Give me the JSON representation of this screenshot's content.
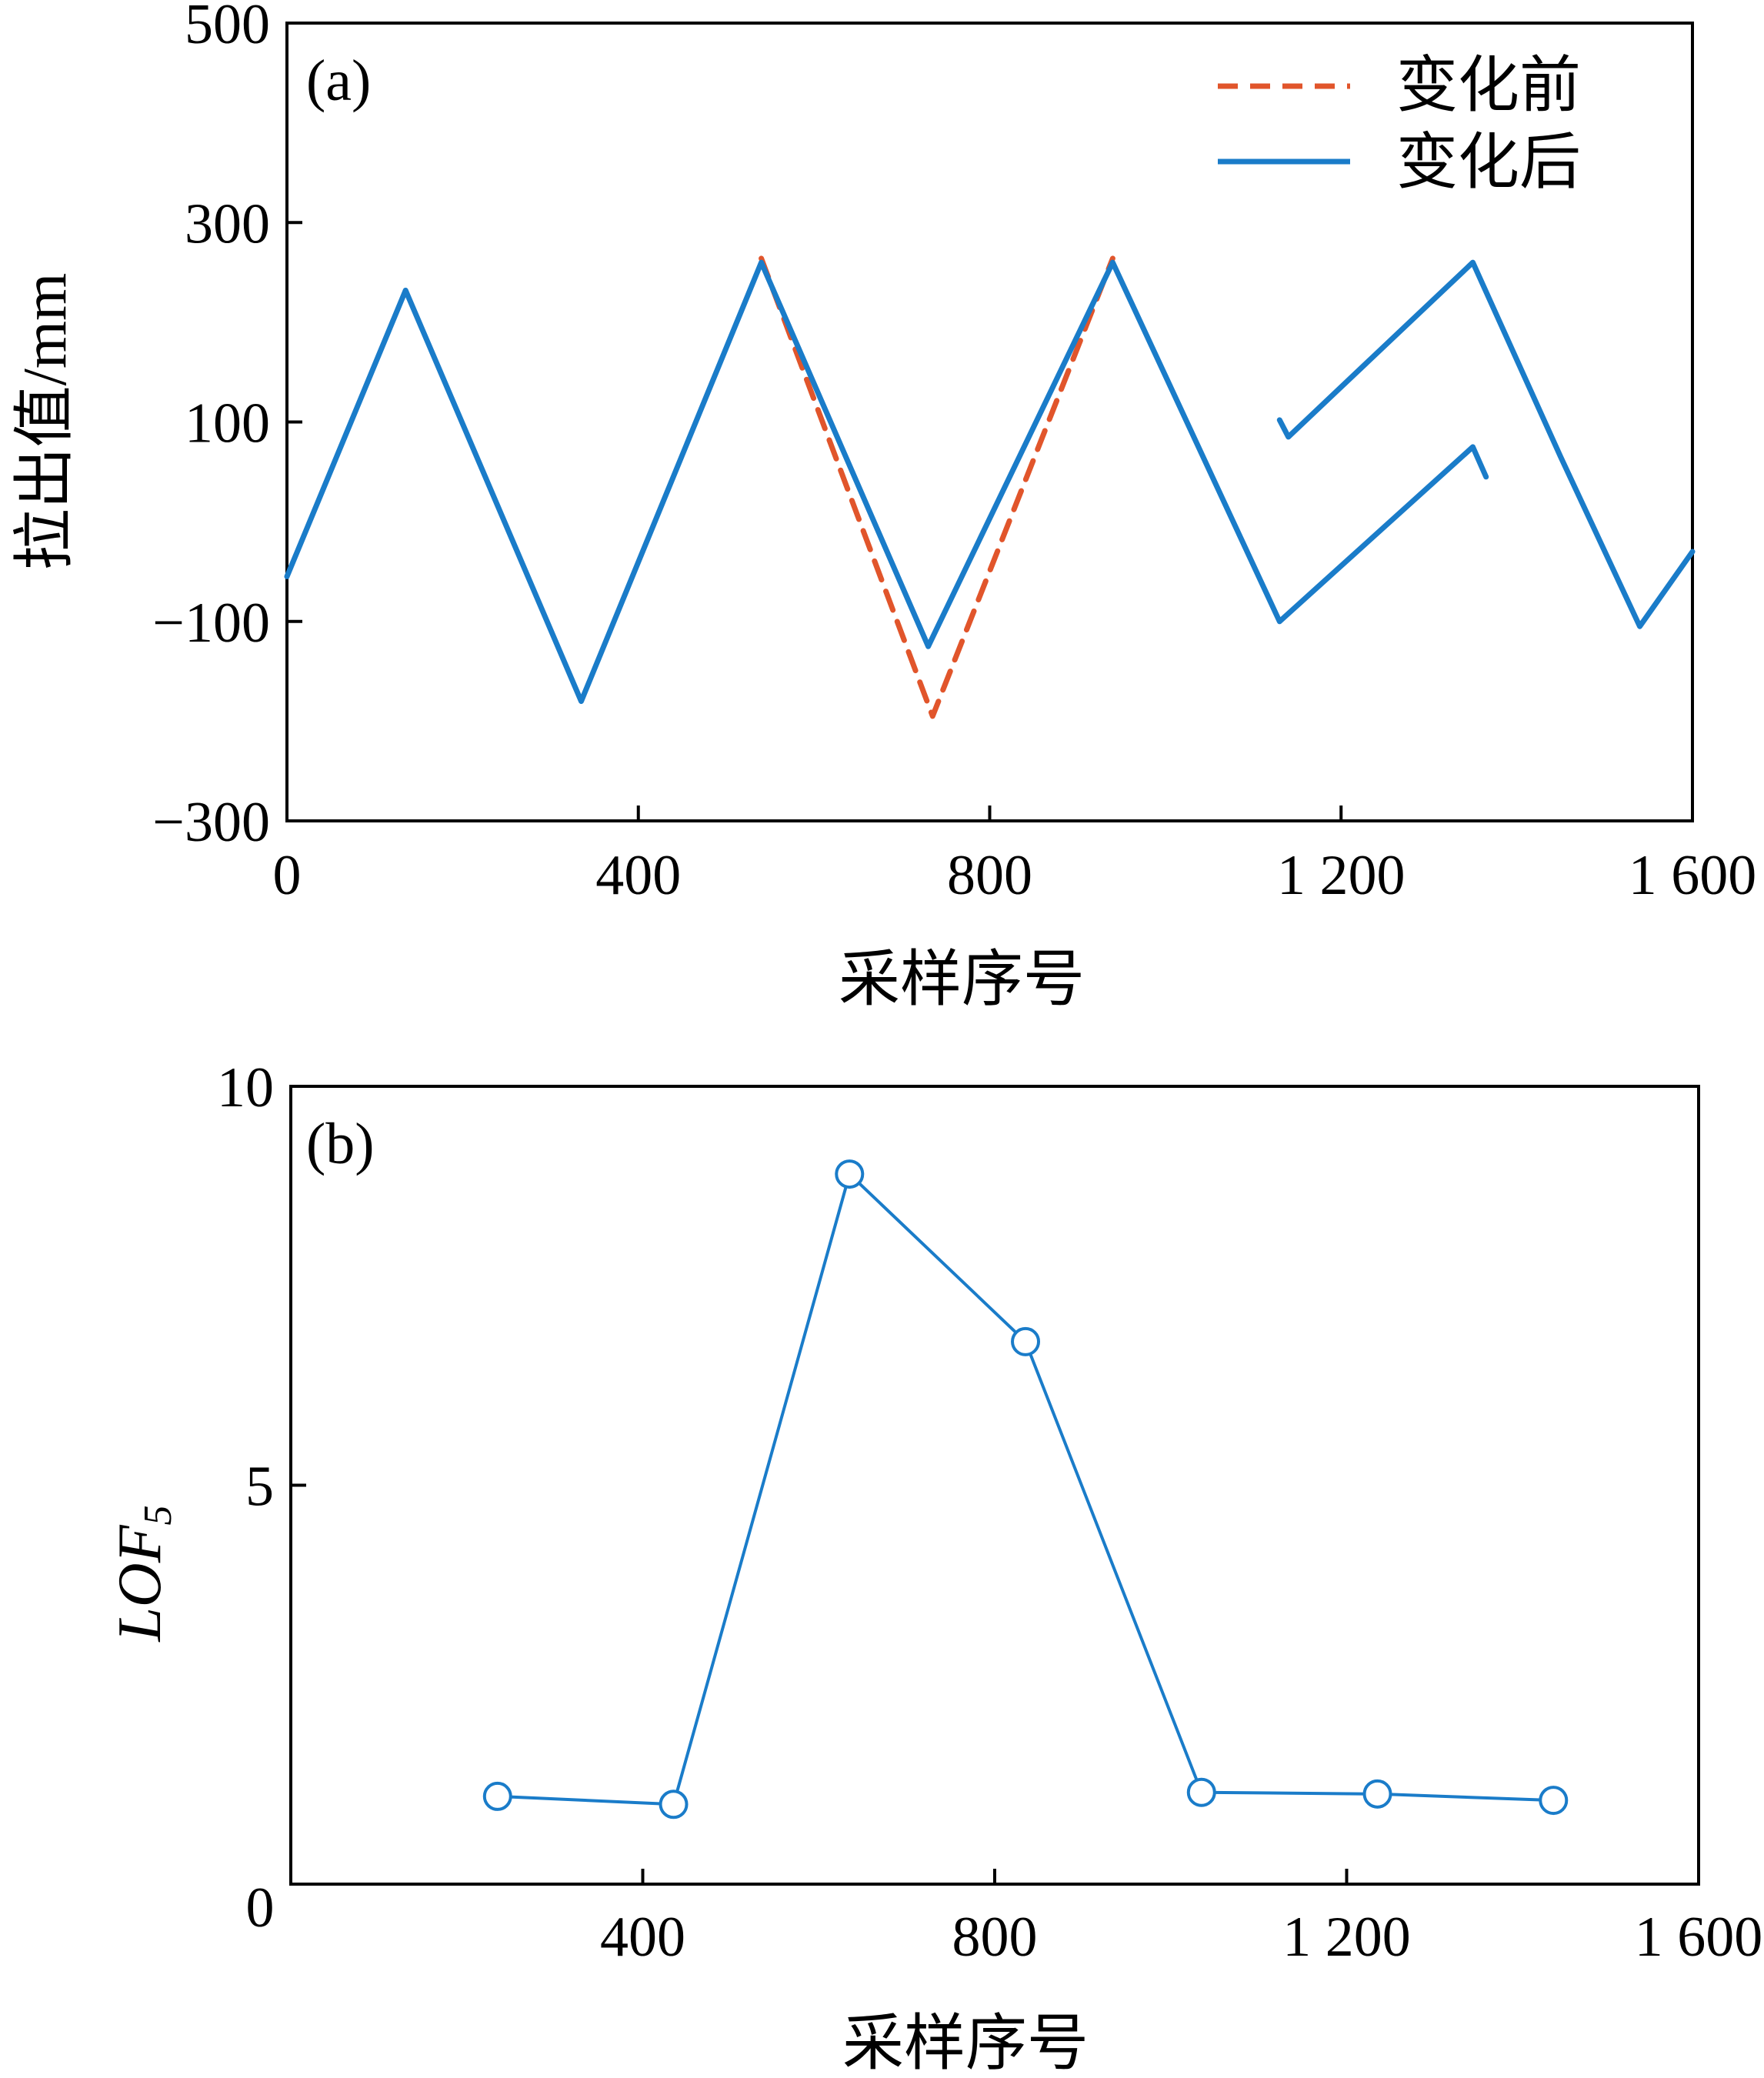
{
  "chart_data": [
    {
      "panel_label": "(a)",
      "type": "line",
      "xlabel": "采样序号",
      "ylabel": "拉出值/mm",
      "xlim": [
        0,
        1600
      ],
      "ylim": [
        -300,
        500
      ],
      "xticks": [
        0,
        400,
        800,
        1200,
        1600
      ],
      "xtick_labels": [
        "0",
        "400",
        "800",
        "1 200",
        "1 600"
      ],
      "yticks": [
        -300,
        -100,
        100,
        300,
        500
      ],
      "ytick_labels": [
        "−300",
        "−100",
        "100",
        "300",
        "500"
      ],
      "legend_position": "top-right",
      "series": [
        {
          "name": "变化前",
          "color": "#e1552b",
          "style": "dashed",
          "segments": [
            [
              [
                540,
                264
              ],
              [
                735,
                -195
              ],
              [
                940,
                264
              ]
            ]
          ]
        },
        {
          "name": "变化后",
          "color": "#1a7cc9",
          "style": "solid",
          "segments": [
            [
              [
                0,
                -55
              ],
              [
                135,
                232
              ],
              [
                335,
                -180
              ],
              [
                540,
                260
              ],
              [
                730,
                -125
              ],
              [
                940,
                260
              ],
              [
                1130,
                -100
              ],
              [
                1350,
                75
              ],
              [
                1365,
                45
              ]
            ],
            [
              [
                1130,
                102
              ],
              [
                1140,
                85
              ],
              [
                1350,
                260
              ],
              [
                1450,
                65
              ],
              [
                1540,
                -105
              ],
              [
                1600,
                -30
              ]
            ]
          ]
        }
      ]
    },
    {
      "panel_label": "(b)",
      "type": "line",
      "xlabel": "采样序号",
      "ylabel_main": "LOF",
      "ylabel_sub": "5",
      "xlim": [
        0,
        1600
      ],
      "ylim": [
        0,
        10
      ],
      "xticks": [
        0,
        400,
        800,
        1200,
        1600
      ],
      "xtick_labels": [
        "0",
        "400",
        "800",
        "1 200",
        "1 600"
      ],
      "yticks": [
        5,
        10
      ],
      "ytick_labels": [
        "5",
        "10"
      ],
      "series": [
        {
          "name": "LOF5",
          "color": "#1a7cc9",
          "marker": "circle",
          "x": [
            235,
            435,
            635,
            835,
            1035,
            1235,
            1435
          ],
          "y": [
            1.1,
            1.0,
            8.9,
            6.8,
            1.15,
            1.13,
            1.05
          ]
        }
      ]
    }
  ]
}
